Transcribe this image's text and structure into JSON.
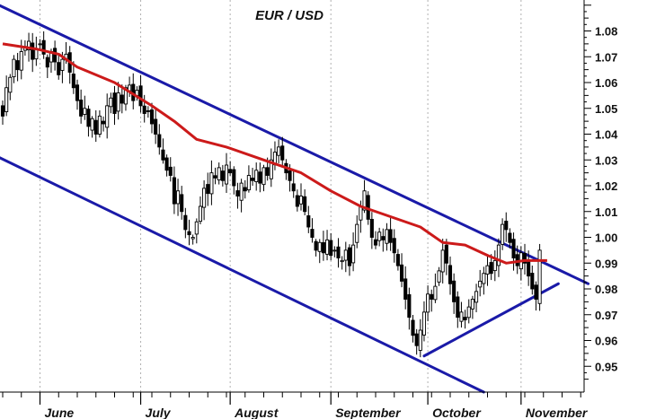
{
  "chart_data": {
    "type": "candlestick",
    "title": "EUR / USD",
    "xlabel": "",
    "ylabel": "",
    "x_axis": {
      "months": [
        "June",
        "July",
        "August",
        "September",
        "October",
        "November"
      ]
    },
    "y_axis": {
      "range": [
        0.94,
        1.092
      ],
      "ticks": [
        0.95,
        0.96,
        0.97,
        0.98,
        0.99,
        1.0,
        1.01,
        1.02,
        1.03,
        1.04,
        1.05,
        1.06,
        1.07,
        1.08
      ],
      "labels": [
        "0.95",
        "0.96",
        "0.97",
        "0.98",
        "0.99",
        "1.00",
        "1.01",
        "1.02",
        "1.03",
        "1.04",
        "1.05",
        "1.06",
        "1.07",
        "1.08"
      ],
      "position": "right"
    },
    "grid": {
      "vertical": true,
      "horizontal": false
    },
    "colors": {
      "candle": "#000000",
      "moving_average": "#cc1a1a",
      "trendline": "#1a1aa8"
    },
    "closes": [
      1.047,
      1.058,
      1.062,
      1.069,
      1.065,
      1.072,
      1.074,
      1.076,
      1.069,
      1.073,
      1.075,
      1.071,
      1.066,
      1.072,
      1.068,
      1.063,
      1.069,
      1.071,
      1.064,
      1.058,
      1.053,
      1.047,
      1.05,
      1.043,
      1.046,
      1.04,
      1.047,
      1.044,
      1.051,
      1.054,
      1.048,
      1.056,
      1.052,
      1.058,
      1.059,
      1.053,
      1.057,
      1.051,
      1.048,
      1.049,
      1.044,
      1.04,
      1.035,
      1.03,
      1.026,
      1.024,
      1.013,
      1.018,
      1.01,
      1.003,
      1.001,
      1.0,
      1.006,
      1.012,
      1.019,
      1.017,
      1.025,
      1.023,
      1.027,
      1.022,
      1.028,
      1.025,
      1.02,
      1.016,
      1.021,
      1.018,
      1.024,
      1.022,
      1.026,
      1.021,
      1.027,
      1.024,
      1.03,
      1.033,
      1.035,
      1.03,
      1.025,
      1.022,
      1.018,
      1.012,
      1.016,
      1.01,
      1.004,
      1.0,
      0.995,
      0.998,
      0.994,
      0.999,
      0.993,
      0.995,
      0.992,
      0.991,
      0.995,
      0.989,
      0.997,
      1.005,
      1.012,
      1.018,
      1.007,
      1.0,
      0.997,
      1.002,
      0.999,
      1.003,
      0.998,
      0.994,
      0.989,
      0.983,
      0.976,
      0.969,
      0.962,
      0.958,
      0.964,
      0.971,
      0.978,
      0.976,
      0.981,
      0.987,
      0.995,
      0.99,
      0.982,
      0.975,
      0.969,
      0.971,
      0.968,
      0.973,
      0.976,
      0.979,
      0.983,
      0.986,
      0.989,
      0.986,
      0.991,
      0.997,
      1.005,
      1.003,
      0.998,
      0.992,
      0.989,
      0.994,
      0.99,
      0.985,
      0.98,
      0.976,
      0.995
    ],
    "moving_average": {
      "type": "line",
      "values": [
        [
          0,
          1.075
        ],
        [
          9,
          1.073
        ],
        [
          15,
          1.071
        ],
        [
          20,
          1.066
        ],
        [
          30,
          1.06
        ],
        [
          40,
          1.051
        ],
        [
          46,
          1.045
        ],
        [
          52,
          1.038
        ],
        [
          60,
          1.035
        ],
        [
          70,
          1.03
        ],
        [
          80,
          1.025
        ],
        [
          88,
          1.018
        ],
        [
          96,
          1.012
        ],
        [
          104,
          1.008
        ],
        [
          112,
          1.004
        ],
        [
          118,
          0.998
        ],
        [
          124,
          0.997
        ],
        [
          130,
          0.993
        ],
        [
          135,
          0.99
        ],
        [
          140,
          0.991
        ],
        [
          146,
          0.991
        ]
      ]
    },
    "trendlines": [
      {
        "from": [
          -1,
          1.09
        ],
        "to": [
          157,
          0.982
        ]
      },
      {
        "from": [
          -1,
          1.031
        ],
        "to": [
          129,
          0.94
        ]
      },
      {
        "from": [
          113,
          0.954
        ],
        "to": [
          149,
          0.982
        ]
      }
    ]
  }
}
